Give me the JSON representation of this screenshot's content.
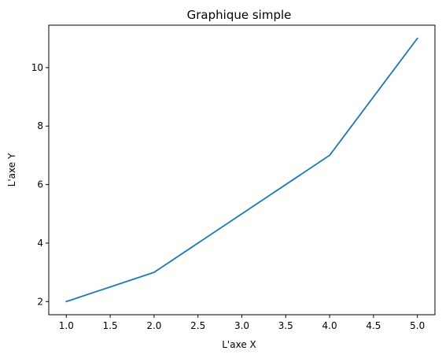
{
  "chart_data": {
    "type": "line",
    "title": "Graphique simple",
    "xlabel": "L'axe X",
    "ylabel": "L'axe Y",
    "xlim": [
      0.8,
      5.2
    ],
    "ylim": [
      1.55,
      11.45
    ],
    "xticks": [
      1.0,
      1.5,
      2.0,
      2.5,
      3.0,
      3.5,
      4.0,
      4.5,
      5.0
    ],
    "xtick_labels": [
      "1.0",
      "1.5",
      "2.0",
      "2.5",
      "3.0",
      "3.5",
      "4.0",
      "4.5",
      "5.0"
    ],
    "yticks": [
      2,
      4,
      6,
      8,
      10
    ],
    "ytick_labels": [
      "2",
      "4",
      "6",
      "8",
      "10"
    ],
    "grid": false,
    "series": [
      {
        "x": [
          1,
          2,
          3,
          4,
          5
        ],
        "y": [
          2,
          3,
          5,
          7,
          11
        ],
        "color": "#1f77b4"
      }
    ]
  }
}
